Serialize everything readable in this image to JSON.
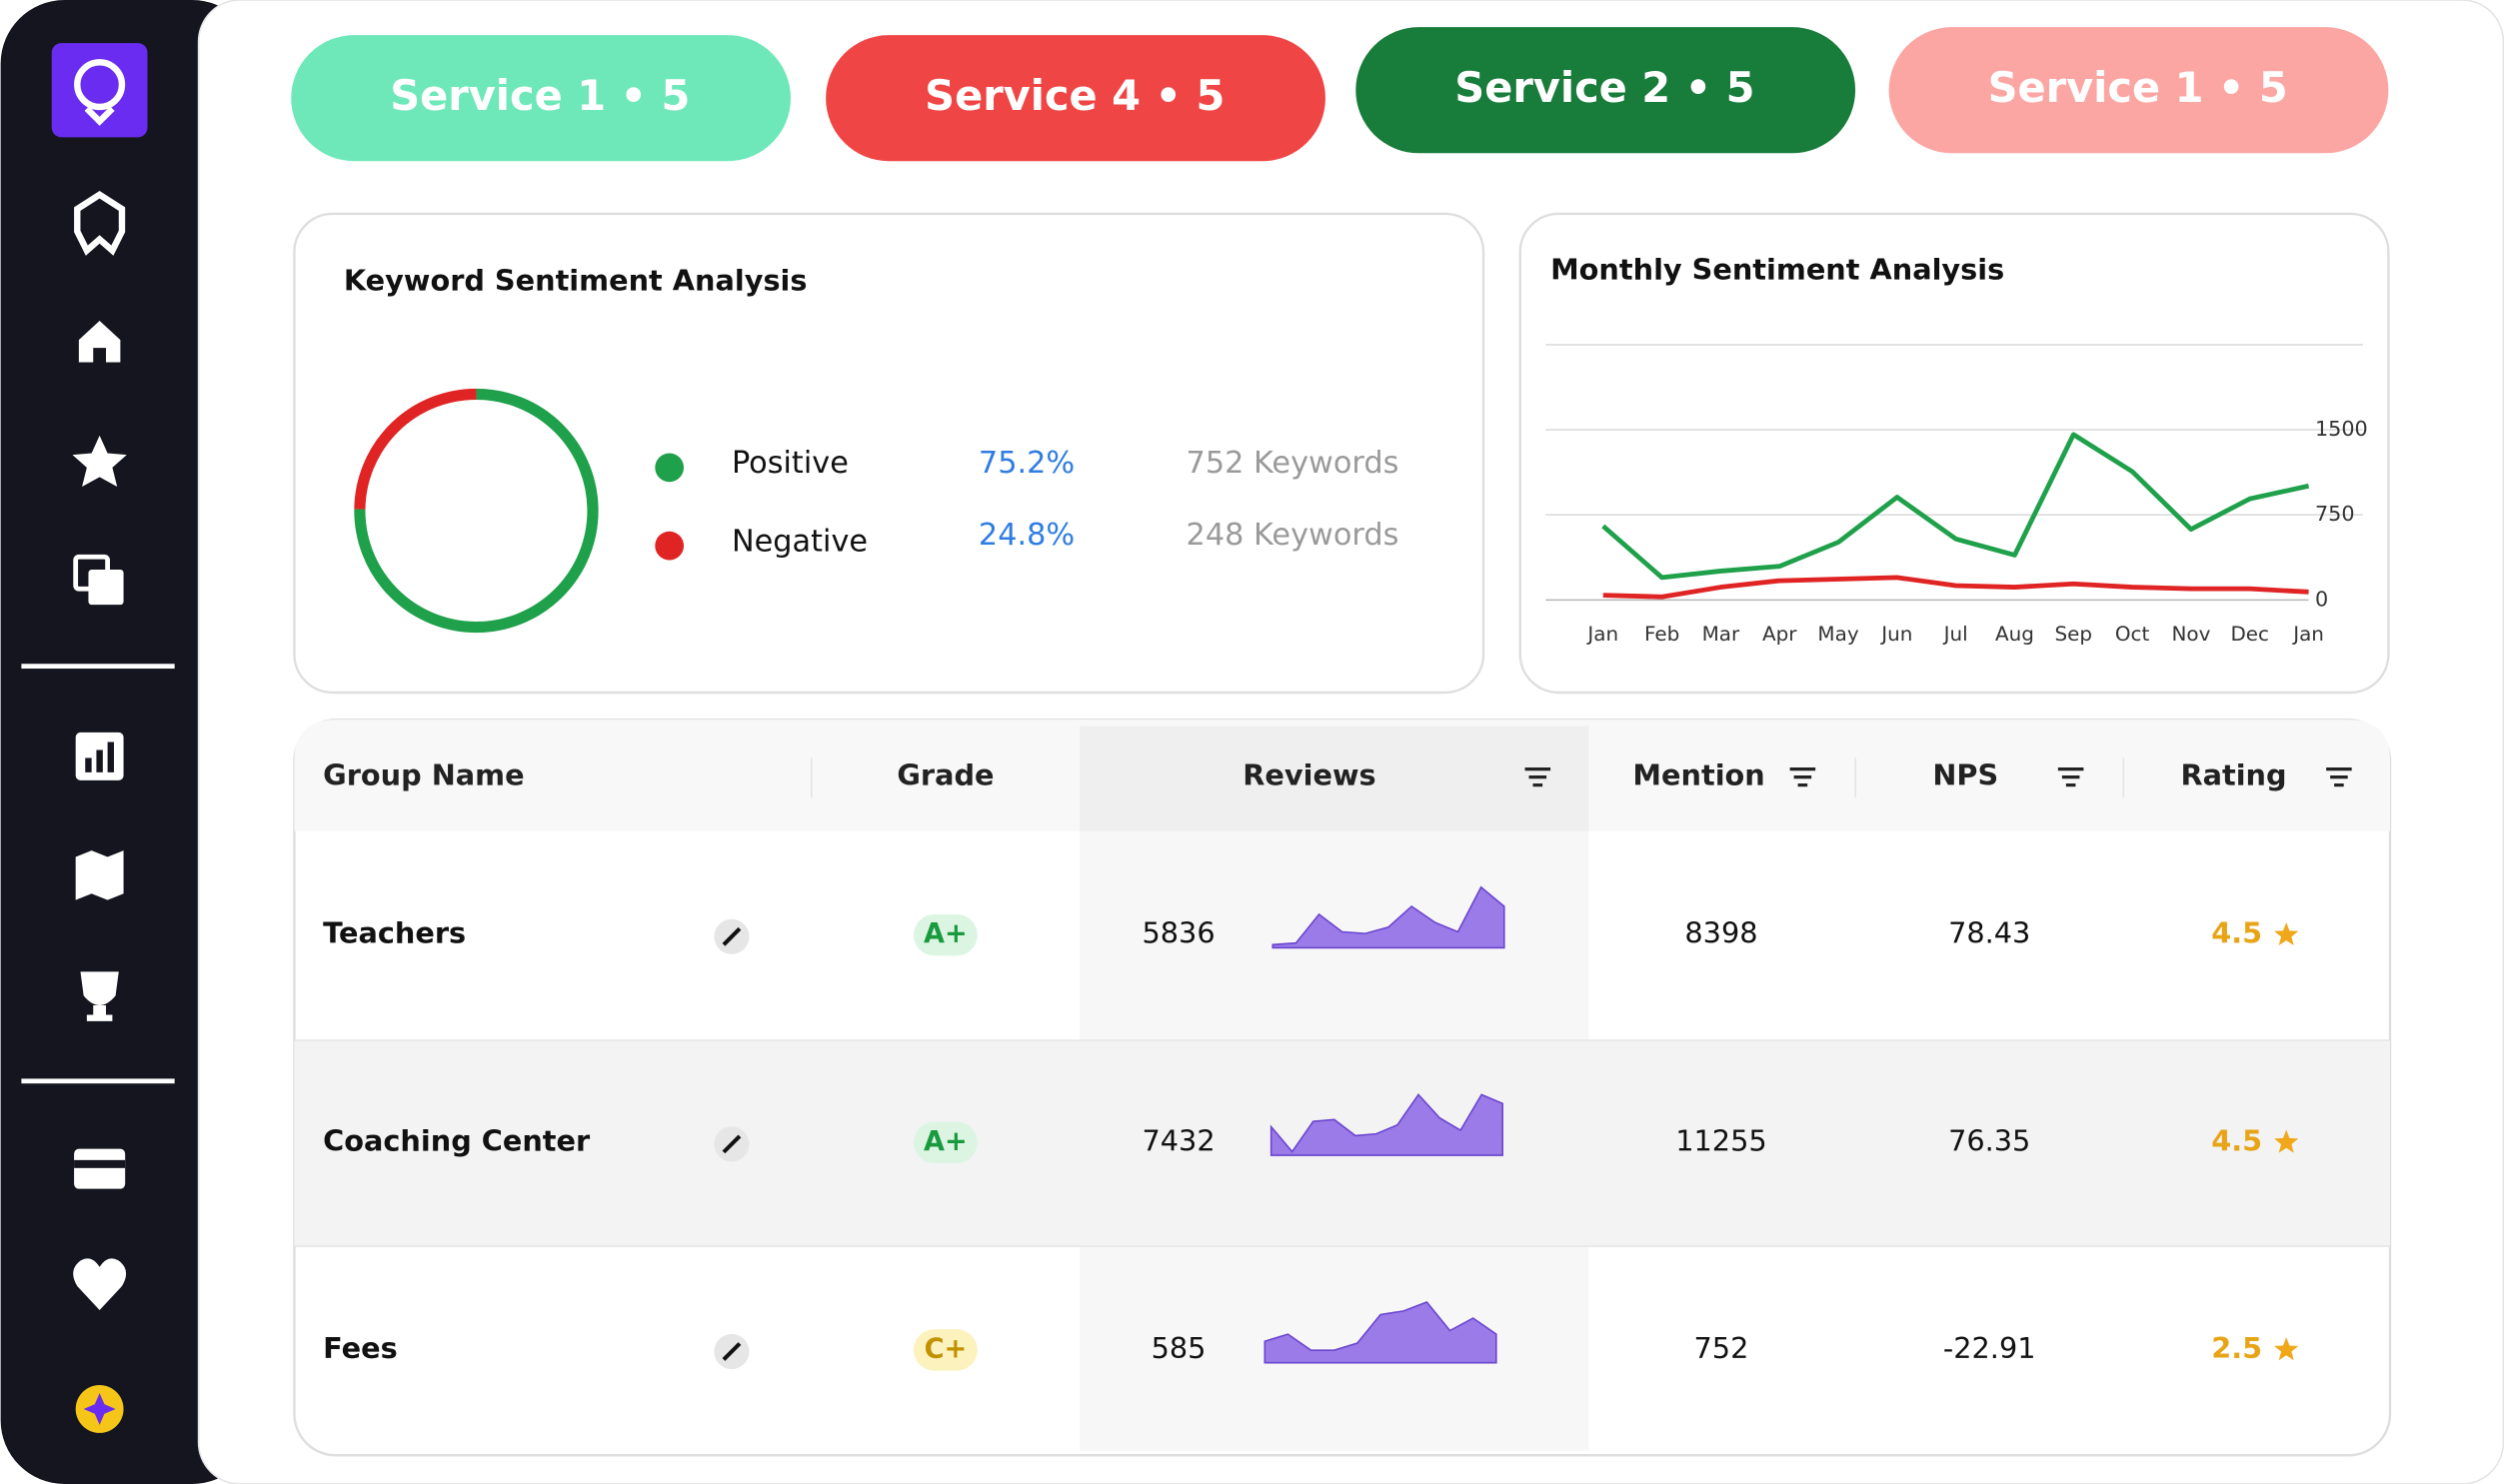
{
  "buttons": [
    {
      "label": "Service 1 • 5",
      "color": "#6ee8b9"
    },
    {
      "label": "Service 4 • 5",
      "color": "#f04545"
    },
    {
      "label": "Service 2 • 5",
      "color": "#187c3a"
    },
    {
      "label": "Service 1 • 5",
      "color": "#fca6a4"
    }
  ],
  "chart_data": [
    {
      "type": "pie",
      "title": "Keyword Sentiment Analysis",
      "categories": [
        "Positive",
        "Negative"
      ],
      "values": [
        75.2,
        24.8
      ],
      "value_labels": [
        "75.2%",
        "24.8%"
      ],
      "details": [
        "752 Keywords",
        "248 Keywords"
      ],
      "colors": [
        "#1fa04a",
        "#e02424"
      ]
    },
    {
      "type": "line",
      "title": "Monthly Sentiment Analysis",
      "categories": [
        "Jan",
        "Feb",
        "Mar",
        "Apr",
        "May",
        "Jun",
        "Jul",
        "Aug",
        "Sep",
        "Oct",
        "Nov",
        "Dec",
        "Jan"
      ],
      "series": [
        {
          "color": "#1fa04a",
          "values": [
            651,
            198,
            255,
            297,
            509,
            906,
            538,
            396,
            1458,
            1132,
            623,
            892,
            1005
          ]
        },
        {
          "color": "#e02424",
          "values": [
            42,
            28,
            113,
            170,
            184,
            198,
            127,
            113,
            142,
            113,
            99,
            99,
            71
          ]
        }
      ],
      "ylim": [
        0,
        2250
      ],
      "yticks": [
        0,
        750,
        1500
      ],
      "grid": true
    }
  ],
  "table": {
    "columns": [
      "Group Name",
      "Grade",
      "Reviews",
      "Mention",
      "NPS",
      "Rating"
    ],
    "rows": [
      {
        "name": "Teachers",
        "grade": "A+",
        "grade_color": "#1a9a3e",
        "grade_bg": "#dcf5e3",
        "reviews": 5836,
        "trend": [
          2,
          3,
          21,
          10,
          9,
          13,
          26,
          16,
          10,
          38,
          26
        ],
        "mention": 8398,
        "nps": 78.43,
        "rating": 4.5
      },
      {
        "name": "Coaching Center",
        "grade": "A+",
        "grade_color": "#1a9a3e",
        "grade_bg": "#dcf5e3",
        "reviews": 7432,
        "trend": [
          16,
          2,
          19,
          20,
          11,
          12,
          17,
          34,
          21,
          14,
          34,
          29
        ],
        "mention": 11255,
        "nps": 76.35,
        "rating": 4.5
      },
      {
        "name": "Fees",
        "grade": "C+",
        "grade_color": "#c29100",
        "grade_bg": "#fcf2bd",
        "reviews": 585,
        "trend": [
          12,
          16,
          7,
          7,
          11,
          27,
          29,
          34,
          18,
          25,
          16
        ],
        "mention": 752,
        "nps": -22.91,
        "rating": 2.5
      }
    ]
  }
}
